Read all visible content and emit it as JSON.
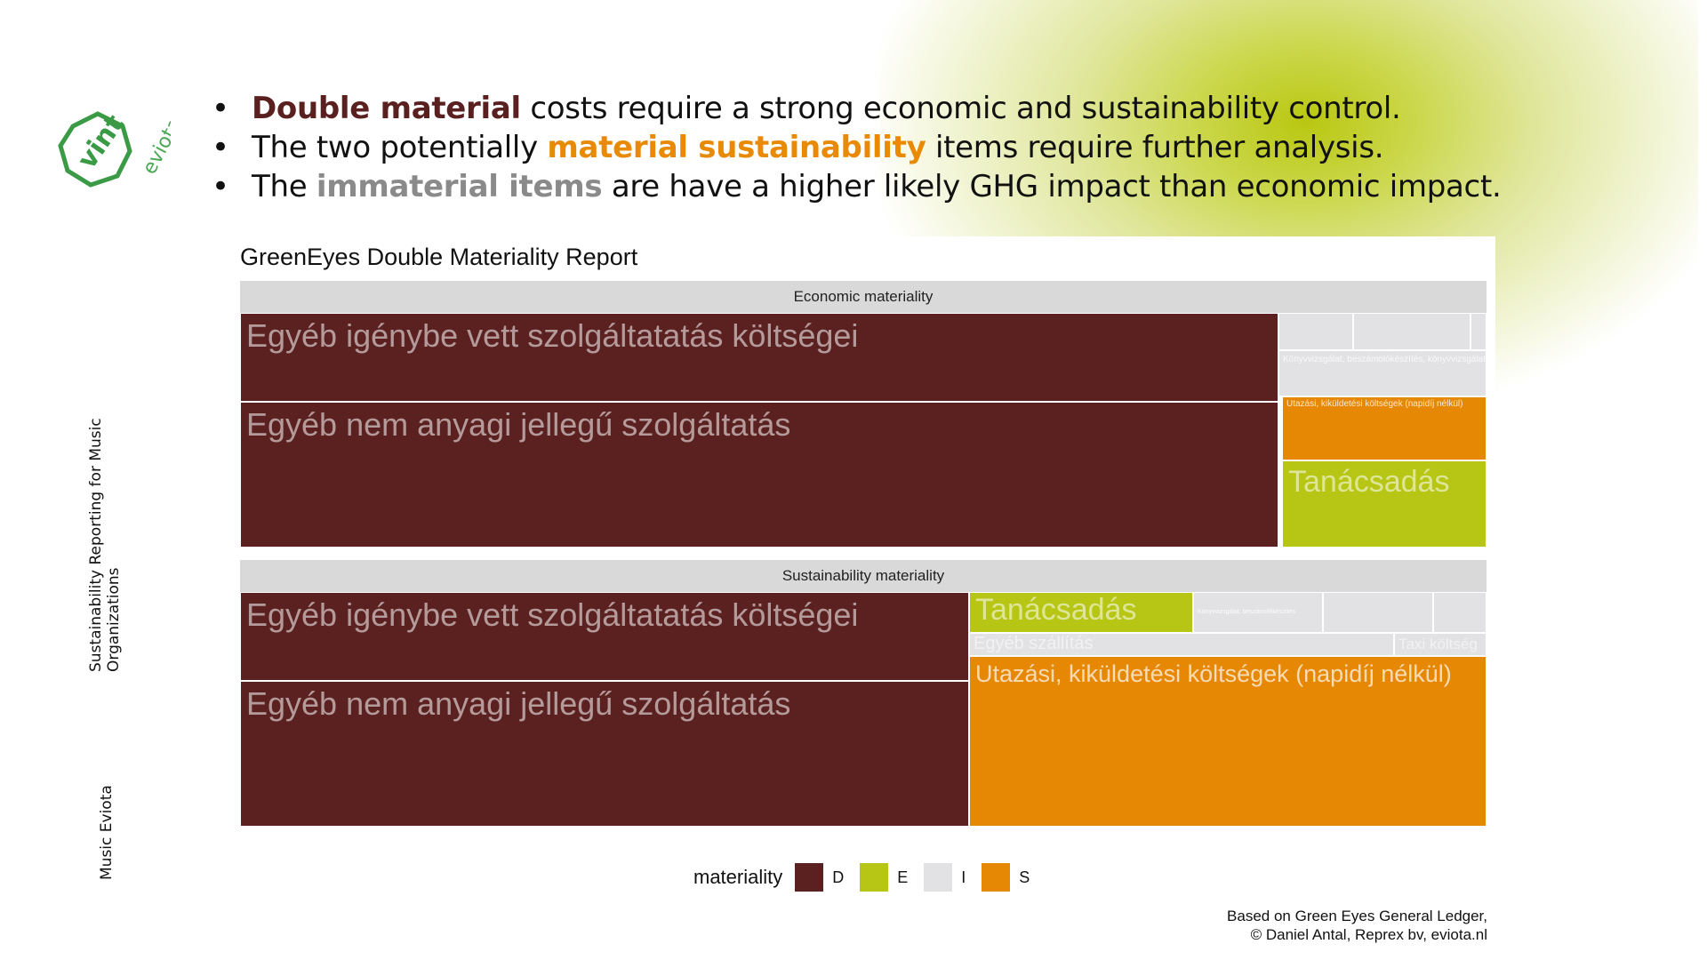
{
  "slide": {
    "bullets": [
      {
        "highlight": "Double material",
        "rest": " costs require a strong economic and sustainability control."
      },
      {
        "pre": "The two potentially ",
        "highlight": "material sustainability",
        "rest": " items require further analysis."
      },
      {
        "pre": "The ",
        "highlight": "immaterial items",
        "rest": " are have a higher likely GHG impact than economic impact."
      }
    ],
    "side_text_1": "Sustainability Reporting for Music Organizations",
    "side_text_2": "Music Eviota",
    "logo_text_1": "vint",
    "logo_text_2": "eviota",
    "credit_1": "Based on Green Eyes General Ledger,",
    "credit_2": "© Daniel Antal, Reprex bv, eviota.nl",
    "colors": {
      "accent_dark": "#5a1f1f",
      "accent_orange": "#e88a05",
      "accent_grey": "#8a8a8a",
      "glow": "#b9c711"
    }
  },
  "chart_data": {
    "type": "treemap",
    "title": "GreenEyes Double Materiality Report",
    "legend": {
      "title": "materiality",
      "position": "bottom",
      "items": [
        {
          "key": "D",
          "color": "#5b2121"
        },
        {
          "key": "E",
          "color": "#b7c615"
        },
        {
          "key": "I",
          "color": "#e2e2e4"
        },
        {
          "key": "S",
          "color": "#e68803"
        }
      ]
    },
    "facets": [
      {
        "name": "Economic materiality",
        "cells": [
          {
            "label": "Egyéb igénybe vett szolgáltatatás költségei",
            "materiality": "D"
          },
          {
            "label": "Egyéb nem anyagi jellegű szolgáltatás",
            "materiality": "D"
          },
          {
            "label": "Utazási, kiküldetési költségek (napidíj nélkül)",
            "materiality": "S"
          },
          {
            "label": "Tanácsadás",
            "materiality": "E"
          },
          {
            "label": "Könyvvizsgálat, beszámolókészítés, könyvvizsgálat",
            "materiality": "I"
          },
          {
            "label": "",
            "materiality": "I"
          },
          {
            "label": "",
            "materiality": "I"
          },
          {
            "label": "",
            "materiality": "I"
          }
        ]
      },
      {
        "name": "Sustainability materiality",
        "cells": [
          {
            "label": "Egyéb igénybe vett szolgáltatatás költségei",
            "materiality": "D"
          },
          {
            "label": "Egyéb nem anyagi jellegű szolgáltatás",
            "materiality": "D"
          },
          {
            "label": "Tanácsadás",
            "materiality": "E"
          },
          {
            "label": "Könyvvizsgálat, beszámolókészítés",
            "materiality": "I"
          },
          {
            "label": "",
            "materiality": "I"
          },
          {
            "label": "",
            "materiality": "I"
          },
          {
            "label": "Egyéb szállítás",
            "materiality": "I"
          },
          {
            "label": "Taxi költség",
            "materiality": "I"
          },
          {
            "label": "Utazási, kiküldetési költségek (napidíj nélkül)",
            "materiality": "S"
          }
        ]
      }
    ]
  }
}
